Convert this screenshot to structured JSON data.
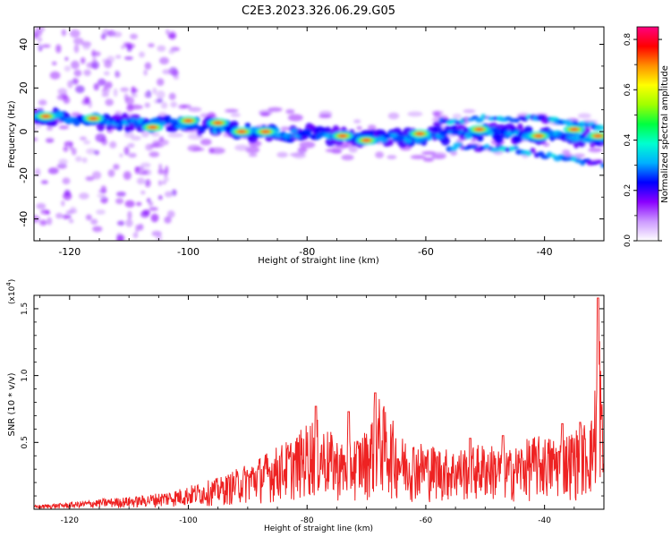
{
  "title": "C2E3.2023.326.06.29.G05",
  "chart_data": [
    {
      "type": "heatmap",
      "xlabel": "Height of straight line (km)",
      "ylabel": "Frequency (Hz)",
      "xlim": [
        -126,
        -30
      ],
      "ylim": [
        -50,
        48
      ],
      "x_ticks": [
        -120,
        -100,
        -80,
        -60,
        -40
      ],
      "x_tick_labels": [
        "-120",
        "-100",
        "-80",
        "-60",
        "-40"
      ],
      "y_ticks": [
        -40,
        -20,
        0,
        20,
        40
      ],
      "y_tick_labels": [
        "-40",
        "-20",
        "0",
        "20",
        "40"
      ],
      "colorbar": {
        "label": "Normalized spectral amplitude",
        "range": [
          0,
          0.85
        ],
        "ticks": [
          0.0,
          0.2,
          0.4,
          0.6,
          0.8
        ],
        "tick_labels": [
          "0.0",
          "0.2",
          "0.4",
          "0.6",
          "0.8"
        ],
        "colors": [
          "#ffffff",
          "#cc99ff",
          "#8a00ff",
          "#0000ff",
          "#00b0ff",
          "#00ffd0",
          "#00ff40",
          "#a0ff00",
          "#ffff00",
          "#ff9000",
          "#ff0000",
          "#ff0080"
        ]
      },
      "band": {
        "main_line": [
          [
            -126,
            7
          ],
          [
            -115,
            5
          ],
          [
            -100,
            3
          ],
          [
            -90,
            0
          ],
          [
            -80,
            -1
          ],
          [
            -70,
            -3
          ],
          [
            -60,
            -2
          ],
          [
            -50,
            0
          ],
          [
            -40,
            -2
          ],
          [
            -30,
            -3
          ]
        ],
        "upper_branch": [
          [
            -58,
            4
          ],
          [
            -50,
            6
          ],
          [
            -40,
            6
          ],
          [
            -30,
            2
          ]
        ],
        "lower_branch": [
          [
            -56,
            -7
          ],
          [
            -45,
            -8
          ],
          [
            -38,
            -12
          ],
          [
            -30,
            -15
          ]
        ],
        "peaks": [
          [
            -124,
            7
          ],
          [
            -116,
            6
          ],
          [
            -106,
            2
          ],
          [
            -100,
            5
          ],
          [
            -95,
            4
          ],
          [
            -91,
            0
          ],
          [
            -87,
            0
          ],
          [
            -74,
            -2
          ],
          [
            -70,
            -4
          ],
          [
            -61,
            -1
          ],
          [
            -51,
            1
          ],
          [
            -41,
            -2
          ],
          [
            -35,
            1
          ],
          [
            -31,
            -2
          ]
        ]
      },
      "grid": false
    },
    {
      "type": "line",
      "xlabel": "Height of straight line (km)",
      "ylabel": "SNR (10 * v/v)",
      "y_multiplier": "(x10",
      "y_multiplier_exp": "4",
      "y_multiplier_close": ")",
      "xlim": [
        -126,
        -30
      ],
      "ylim": [
        0,
        1.6
      ],
      "x_ticks": [
        -120,
        -100,
        -80,
        -60,
        -40
      ],
      "x_tick_labels": [
        "-120",
        "-100",
        "-80",
        "-60",
        "-40"
      ],
      "y_ticks": [
        0.5,
        1.0,
        1.5
      ],
      "y_tick_labels": [
        "0.5",
        "1.0",
        "1.5"
      ],
      "series": [
        {
          "color": "#ee2222",
          "envelope": [
            [
              -126,
              0.03
            ],
            [
              -120,
              0.05
            ],
            [
              -114,
              0.08
            ],
            [
              -108,
              0.1
            ],
            [
              -102,
              0.15
            ],
            [
              -98,
              0.2
            ],
            [
              -94,
              0.25
            ],
            [
              -90,
              0.35
            ],
            [
              -86,
              0.45
            ],
            [
              -82,
              0.55
            ],
            [
              -79,
              0.7
            ],
            [
              -74,
              0.5
            ],
            [
              -70,
              0.6
            ],
            [
              -68,
              0.85
            ],
            [
              -64,
              0.55
            ],
            [
              -60,
              0.5
            ],
            [
              -56,
              0.45
            ],
            [
              -50,
              0.5
            ],
            [
              -46,
              0.45
            ],
            [
              -42,
              0.55
            ],
            [
              -38,
              0.55
            ],
            [
              -35,
              0.6
            ],
            [
              -32,
              0.7
            ],
            [
              -31,
              1.2
            ],
            [
              -30.8,
              1.55
            ],
            [
              -30.5,
              1.1
            ],
            [
              -30,
              0.4
            ]
          ],
          "peaks": [
            [
              -78.5,
              0.77
            ],
            [
              -73,
              0.73
            ],
            [
              -68.5,
              0.87
            ],
            [
              -52.5,
              0.53
            ],
            [
              -47,
              0.55
            ],
            [
              -37,
              0.64
            ],
            [
              -34,
              0.65
            ],
            [
              -31,
              1.58
            ]
          ]
        }
      ],
      "grid": false
    }
  ]
}
